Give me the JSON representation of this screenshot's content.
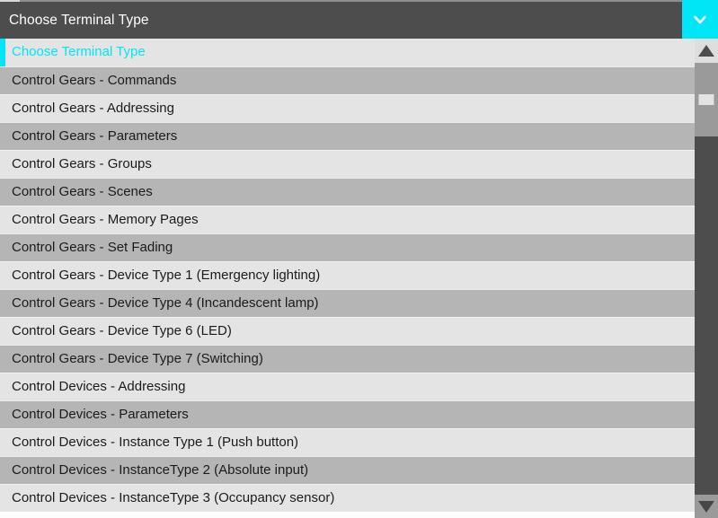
{
  "header": {
    "label": "Choose Terminal Type",
    "toggle_icon": "chevron-down-icon"
  },
  "dropdown": {
    "selected_index": 0,
    "items": [
      {
        "label": "Choose Terminal Type",
        "selected": true
      },
      {
        "label": "Control Gears - Commands",
        "selected": false
      },
      {
        "label": "Control Gears - Addressing",
        "selected": false
      },
      {
        "label": "Control Gears - Parameters",
        "selected": false
      },
      {
        "label": "Control Gears - Groups",
        "selected": false
      },
      {
        "label": "Control Gears - Scenes",
        "selected": false
      },
      {
        "label": "Control Gears - Memory Pages",
        "selected": false
      },
      {
        "label": "Control Gears - Set Fading",
        "selected": false
      },
      {
        "label": "Control Gears - Device Type 1 (Emergency lighting)",
        "selected": false
      },
      {
        "label": "Control Gears - Device Type 4 (Incandescent lamp)",
        "selected": false
      },
      {
        "label": "Control Gears - Device Type 6 (LED)",
        "selected": false
      },
      {
        "label": "Control Gears - Device Type 7 (Switching)",
        "selected": false
      },
      {
        "label": "Control Devices - Addressing",
        "selected": false
      },
      {
        "label": "Control Devices - Parameters",
        "selected": false
      },
      {
        "label": "Control Devices - Instance Type 1 (Push button)",
        "selected": false
      },
      {
        "label": "Control Devices - InstanceType 2 (Absolute input)",
        "selected": false
      },
      {
        "label": "Control Devices - InstanceType 3 (Occupancy sensor)",
        "selected": false
      }
    ]
  },
  "scrollbar": {
    "up_icon": "arrow-up-icon",
    "down_icon": "arrow-down-icon"
  },
  "colors": {
    "accent": "#00E6F6",
    "header_bg": "#4D4D4D",
    "row_light": "#E4E4E4",
    "row_dark": "#B5B5B5",
    "scroll_track": "#4D4D4D",
    "scroll_thumb": "#9A9A9A"
  }
}
